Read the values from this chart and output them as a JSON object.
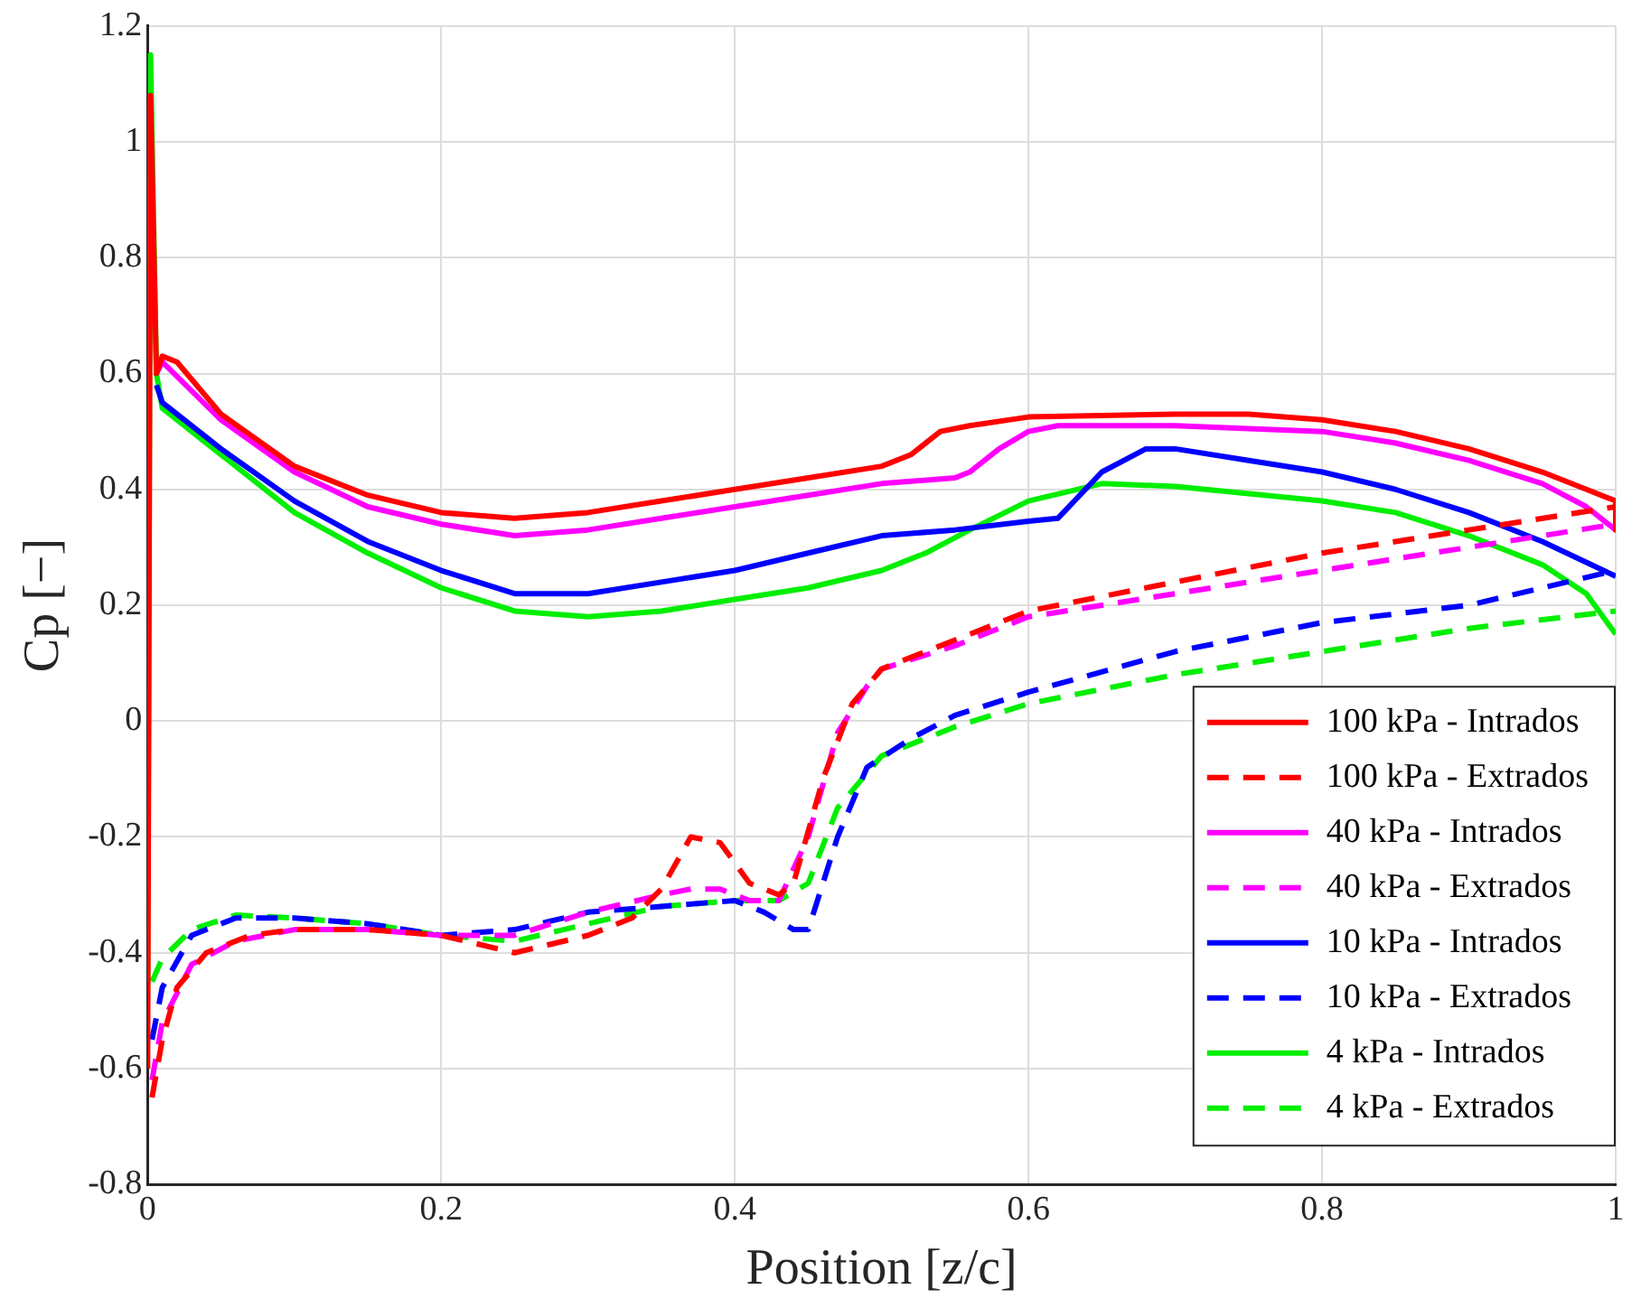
{
  "chart_data": {
    "type": "line",
    "xlabel": "Position [z/c]",
    "ylabel": "Cp [−]",
    "xlim": [
      0,
      1
    ],
    "ylim": [
      -0.8,
      1.2
    ],
    "xticks": [
      0,
      0.2,
      0.4,
      0.6,
      0.8,
      1
    ],
    "yticks": [
      -0.8,
      -0.6,
      -0.4,
      -0.2,
      0,
      0.2,
      0.4,
      0.6,
      0.8,
      1,
      1.2
    ],
    "grid": true,
    "legend": "bottom right",
    "marker": "none",
    "series": [
      {
        "name": "100 kPa - Intrados",
        "color": "#ff0000",
        "line_style": "solid",
        "x": [
          0,
          0.002,
          0.006,
          0.01,
          0.02,
          0.05,
          0.1,
          0.15,
          0.2,
          0.25,
          0.3,
          0.35,
          0.4,
          0.45,
          0.5,
          0.52,
          0.54,
          0.56,
          0.6,
          0.7,
          0.75,
          0.8,
          0.85,
          0.9,
          0.95,
          0.98,
          1,
          1
        ],
        "values": [
          -0.6,
          1.08,
          0.6,
          0.63,
          0.62,
          0.53,
          0.44,
          0.39,
          0.36,
          0.35,
          0.36,
          0.38,
          0.4,
          0.42,
          0.44,
          0.46,
          0.5,
          0.51,
          0.525,
          0.53,
          0.53,
          0.52,
          0.5,
          0.47,
          0.43,
          0.4,
          0.38,
          0.33
        ]
      },
      {
        "name": "100 kPa - Extrados",
        "color": "#ff0000",
        "line_style": "dashed",
        "x": [
          0.003,
          0.01,
          0.02,
          0.04,
          0.07,
          0.1,
          0.15,
          0.2,
          0.25,
          0.3,
          0.33,
          0.35,
          0.37,
          0.39,
          0.41,
          0.43,
          0.44,
          0.46,
          0.48,
          0.5,
          0.55,
          0.6,
          0.7,
          0.8,
          0.9,
          1
        ],
        "values": [
          -0.65,
          -0.55,
          -0.46,
          -0.4,
          -0.37,
          -0.36,
          -0.36,
          -0.37,
          -0.4,
          -0.37,
          -0.34,
          -0.29,
          -0.2,
          -0.21,
          -0.28,
          -0.3,
          -0.28,
          -0.1,
          0.03,
          0.09,
          0.14,
          0.19,
          0.24,
          0.29,
          0.33,
          0.37
        ]
      },
      {
        "name": "40 kPa - Intrados",
        "color": "#ff00ff",
        "line_style": "solid",
        "x": [
          0.006,
          0.01,
          0.05,
          0.1,
          0.15,
          0.2,
          0.25,
          0.3,
          0.35,
          0.4,
          0.45,
          0.5,
          0.55,
          0.56,
          0.58,
          0.6,
          0.62,
          0.7,
          0.8,
          0.85,
          0.9,
          0.95,
          0.98,
          1
        ],
        "values": [
          0.6,
          0.62,
          0.52,
          0.43,
          0.37,
          0.34,
          0.32,
          0.33,
          0.35,
          0.37,
          0.39,
          0.41,
          0.42,
          0.43,
          0.47,
          0.5,
          0.51,
          0.51,
          0.5,
          0.48,
          0.45,
          0.41,
          0.37,
          0.33
        ]
      },
      {
        "name": "40 kPa - Extrados",
        "color": "#ff00ff",
        "line_style": "dashed",
        "x": [
          0.003,
          0.01,
          0.03,
          0.06,
          0.1,
          0.15,
          0.2,
          0.25,
          0.3,
          0.35,
          0.37,
          0.39,
          0.41,
          0.43,
          0.45,
          0.47,
          0.49,
          0.5,
          0.55,
          0.6,
          0.7,
          0.8,
          0.9,
          1
        ],
        "values": [
          -0.62,
          -0.52,
          -0.42,
          -0.38,
          -0.36,
          -0.36,
          -0.37,
          -0.37,
          -0.33,
          -0.3,
          -0.29,
          -0.29,
          -0.31,
          -0.31,
          -0.2,
          -0.02,
          0.06,
          0.09,
          0.13,
          0.18,
          0.22,
          0.26,
          0.3,
          0.34
        ]
      },
      {
        "name": "10 kPa - Intrados",
        "color": "#0000ff",
        "line_style": "solid",
        "x": [
          0.006,
          0.01,
          0.05,
          0.1,
          0.15,
          0.2,
          0.25,
          0.3,
          0.35,
          0.4,
          0.45,
          0.5,
          0.55,
          0.6,
          0.62,
          0.65,
          0.68,
          0.7,
          0.75,
          0.8,
          0.85,
          0.9,
          0.95,
          1
        ],
        "values": [
          0.58,
          0.55,
          0.47,
          0.38,
          0.31,
          0.26,
          0.22,
          0.22,
          0.24,
          0.26,
          0.29,
          0.32,
          0.33,
          0.345,
          0.35,
          0.43,
          0.47,
          0.47,
          0.45,
          0.43,
          0.4,
          0.36,
          0.31,
          0.25
        ]
      },
      {
        "name": "10 kPa - Extrados",
        "color": "#0000ff",
        "line_style": "dashed",
        "x": [
          0.003,
          0.01,
          0.03,
          0.06,
          0.1,
          0.15,
          0.2,
          0.25,
          0.3,
          0.35,
          0.4,
          0.42,
          0.44,
          0.45,
          0.47,
          0.49,
          0.52,
          0.55,
          0.6,
          0.7,
          0.8,
          0.9,
          1
        ],
        "values": [
          -0.55,
          -0.46,
          -0.37,
          -0.34,
          -0.34,
          -0.35,
          -0.37,
          -0.36,
          -0.33,
          -0.32,
          -0.31,
          -0.33,
          -0.36,
          -0.36,
          -0.2,
          -0.08,
          -0.03,
          0.01,
          0.05,
          0.12,
          0.17,
          0.2,
          0.26
        ]
      },
      {
        "name": "4 kPa - Intrados",
        "color": "#00ee00",
        "line_style": "solid",
        "x": [
          0,
          0.002,
          0.006,
          0.01,
          0.05,
          0.1,
          0.15,
          0.2,
          0.25,
          0.3,
          0.35,
          0.4,
          0.45,
          0.5,
          0.53,
          0.56,
          0.6,
          0.65,
          0.7,
          0.8,
          0.85,
          0.9,
          0.95,
          0.98,
          1
        ],
        "values": [
          -0.45,
          1.15,
          0.6,
          0.54,
          0.46,
          0.36,
          0.29,
          0.23,
          0.19,
          0.18,
          0.19,
          0.21,
          0.23,
          0.26,
          0.29,
          0.33,
          0.38,
          0.41,
          0.405,
          0.38,
          0.36,
          0.32,
          0.27,
          0.22,
          0.15
        ]
      },
      {
        "name": "4 kPa - Extrados",
        "color": "#00ee00",
        "line_style": "dashed",
        "x": [
          0.003,
          0.01,
          0.03,
          0.06,
          0.1,
          0.15,
          0.2,
          0.25,
          0.3,
          0.35,
          0.4,
          0.43,
          0.45,
          0.47,
          0.5,
          0.55,
          0.6,
          0.7,
          0.8,
          0.9,
          1
        ],
        "values": [
          -0.45,
          -0.41,
          -0.36,
          -0.335,
          -0.34,
          -0.35,
          -0.37,
          -0.38,
          -0.35,
          -0.32,
          -0.31,
          -0.31,
          -0.28,
          -0.15,
          -0.06,
          -0.01,
          0.03,
          0.08,
          0.12,
          0.16,
          0.19
        ]
      }
    ]
  }
}
